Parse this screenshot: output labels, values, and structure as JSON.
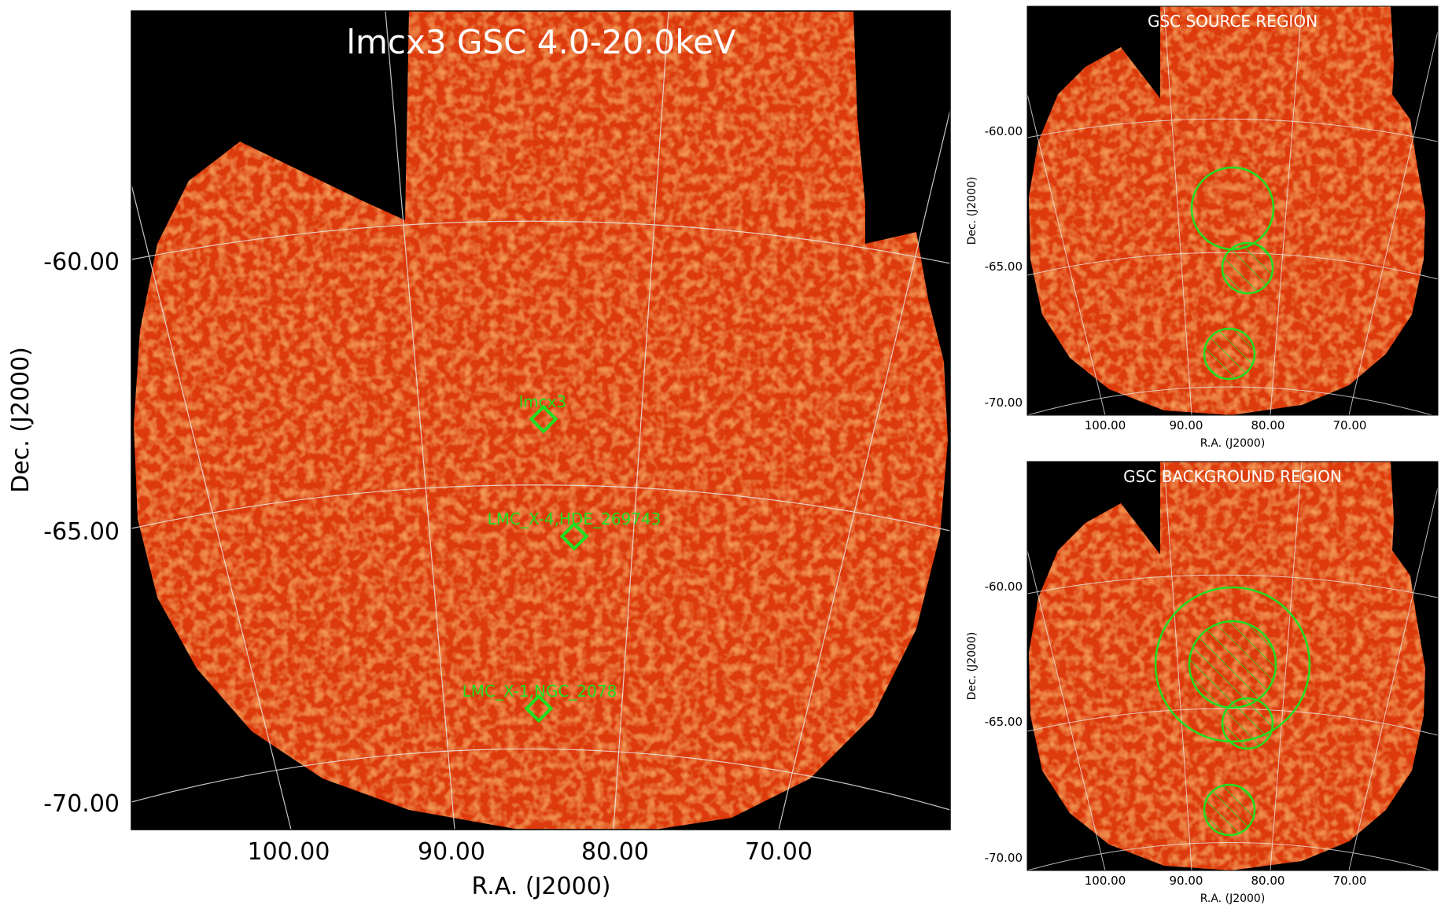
{
  "main_panel": {
    "title": "lmcx3 GSC 4.0-20.0keV",
    "xlabel": "R.A. (J2000)",
    "ylabel": "Dec. (J2000)",
    "x_ticks": [
      "100.00",
      "90.00",
      "80.00",
      "70.00"
    ],
    "y_ticks": [
      "-60.00",
      "-65.00",
      "-70.00"
    ],
    "sources": [
      {
        "name": "lmcx3"
      },
      {
        "name": "LMC_X-4,HDE_269743"
      },
      {
        "name": "LMC_X-1,NGC_2078"
      }
    ]
  },
  "source_panel": {
    "title": "GSC SOURCE REGION",
    "xlabel": "R.A. (J2000)",
    "ylabel": "Dec. (J2000)",
    "x_ticks": [
      "100.00",
      "90.00",
      "80.00",
      "70.00"
    ],
    "y_ticks": [
      "-60.00",
      "-65.00",
      "-70.00"
    ]
  },
  "background_panel": {
    "title": "GSC BACKGROUND REGION",
    "xlabel": "R.A. (J2000)",
    "ylabel": "Dec. (J2000)",
    "x_ticks": [
      "100.00",
      "90.00",
      "80.00",
      "70.00"
    ],
    "y_ticks": [
      "-60.00",
      "-65.00",
      "-70.00"
    ]
  },
  "colors": {
    "background": "#000000",
    "map_fill": "#dd3a0e",
    "grid": "#e6e6e6",
    "region": "#1fe01f"
  }
}
